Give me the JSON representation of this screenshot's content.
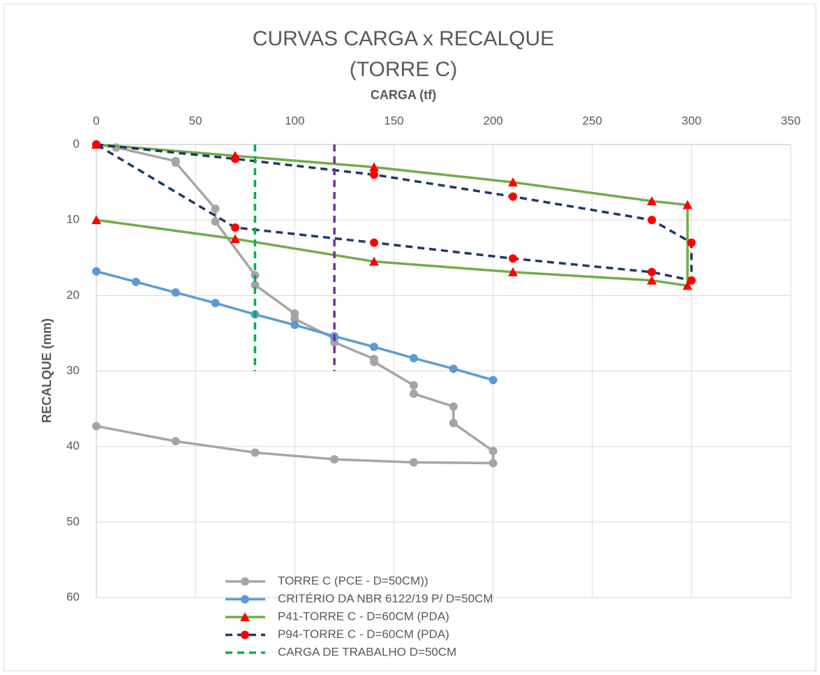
{
  "chart_data": {
    "type": "line",
    "title": "CURVAS CARGA x RECALQUE",
    "subtitle": "(TORRE C)",
    "x_label": "CARGA (tf)",
    "y_label": "RECALQUE (mm)",
    "xlim": [
      0,
      350
    ],
    "xticks": [
      0,
      50,
      100,
      150,
      200,
      250,
      300,
      350
    ],
    "ylim": [
      0,
      60
    ],
    "yticks": [
      0,
      10,
      20,
      30,
      40,
      50,
      60
    ],
    "y_inverted": true,
    "x_axis_position": "top",
    "grid": true,
    "legend": "bottom",
    "series": [
      {
        "name": "TORRE C (PCE - D=50CM))",
        "color": "#a5a5a5",
        "marker": "circle",
        "marker_color": "#a5a5a5",
        "dash": false,
        "x": [
          0,
          10,
          40,
          40,
          60,
          60,
          80,
          80,
          100,
          100,
          120,
          120,
          140,
          140,
          160,
          160,
          180,
          180,
          200,
          200,
          160,
          120,
          80,
          40,
          0
        ],
        "values": [
          0,
          0.4,
          2.2,
          2.4,
          8.5,
          10.2,
          17.3,
          18.6,
          22.4,
          23.1,
          25.7,
          26.2,
          28.4,
          28.8,
          31.9,
          33,
          34.7,
          36.9,
          40.6,
          42.2,
          42.1,
          41.7,
          40.8,
          39.3,
          37.3
        ]
      },
      {
        "name": "CRITÉRIO DA NBR 6122/19 P/ D=50CM",
        "color": "#5b9bd5",
        "marker": "circle",
        "marker_color": "#5b9bd5",
        "dash": false,
        "x": [
          0,
          20,
          40,
          60,
          80,
          100,
          120,
          140,
          160,
          180,
          200
        ],
        "values": [
          16.8,
          18.2,
          19.6,
          21,
          22.5,
          23.9,
          25.4,
          26.8,
          28.3,
          29.7,
          31.2
        ]
      },
      {
        "name": "P41-TORRE C - D=60CM (PDA)",
        "color": "#70ad47",
        "marker": "triangle",
        "marker_color": "#ff0000",
        "dash": false,
        "x": [
          0,
          70,
          140,
          210,
          280,
          298,
          298,
          280,
          210,
          140,
          70,
          0
        ],
        "values": [
          0,
          1.5,
          3,
          5,
          7.5,
          8,
          18.7,
          18,
          16.9,
          15.5,
          12.5,
          10
        ]
      },
      {
        "name": "P94-TORRE C - D=60CM (PDA)",
        "color": "#203864",
        "marker": "circle",
        "marker_color": "#ff0000",
        "dash": true,
        "x": [
          0,
          70,
          140,
          210,
          280,
          300,
          300,
          280,
          210,
          140,
          70,
          0
        ],
        "values": [
          0,
          1.9,
          4,
          6.9,
          10,
          13,
          18,
          16.9,
          15.1,
          13,
          11,
          0
        ]
      },
      {
        "name": "CARGA DE TRABALHO D=50CM",
        "color": "#00b050",
        "marker": "none",
        "marker_color": "#00b050",
        "dash": true,
        "x": [
          80,
          80
        ],
        "values": [
          0,
          30
        ]
      },
      {
        "color": "#7030a0",
        "marker": "none",
        "marker_color": "#7030a0",
        "dash": true,
        "x": [
          120,
          120
        ],
        "values": [
          0,
          30
        ]
      }
    ]
  }
}
